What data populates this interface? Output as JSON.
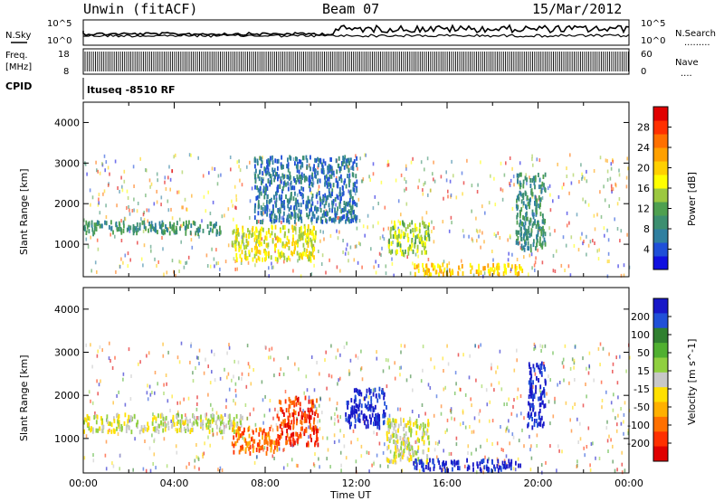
{
  "header": {
    "radar_title": "Unwin (fitACF)",
    "beam": "Beam 07",
    "date": "15/Mar/2012"
  },
  "status_panels": {
    "left_top_label": "N.Sky",
    "left_top_ticks": [
      "10^5",
      "10^0"
    ],
    "right_top_label": "N.Search",
    "right_top_ticks": [
      "10^5",
      "10^0"
    ],
    "left_mid_label_1": "Freq.",
    "left_mid_label_2": "[MHz]",
    "left_mid_ticks": [
      "18",
      "8"
    ],
    "right_mid_label": "Nave",
    "right_mid_ticks": [
      "60",
      "0"
    ],
    "cpid_label": "CPID",
    "cpid_text": "ltuseq -8510 RF"
  },
  "chart_data": [
    {
      "type": "heatmap",
      "name": "power",
      "ylabel": "Slant Range [km]",
      "yticks": [
        "1000",
        "2000",
        "3000",
        "4000"
      ],
      "ylim": [
        200,
        4500
      ],
      "xlim": [
        0,
        24
      ],
      "xticks": [
        "00:00",
        "04:00",
        "08:00",
        "12:00",
        "16:00",
        "20:00",
        "00:00"
      ],
      "colorbar": {
        "label": "Power [dB]",
        "ticks": [
          "4",
          "8",
          "12",
          "16",
          "20",
          "24",
          "28"
        ],
        "colors": [
          "#1010e0",
          "#1f4fd8",
          "#2f7fa0",
          "#3c8f70",
          "#4fa050",
          "#9cc840",
          "#ffff00",
          "#ffd000",
          "#ffa000",
          "#ff7000",
          "#ff3000",
          "#e00000"
        ]
      },
      "regions": [
        {
          "x": [
            0,
            6
          ],
          "y": [
            1300,
            1600
          ],
          "level": 3
        },
        {
          "x": [
            6.5,
            10.2
          ],
          "y": [
            650,
            1500
          ],
          "level": 6
        },
        {
          "x": [
            7.5,
            12
          ],
          "y": [
            1600,
            3200
          ],
          "level": 2
        },
        {
          "x": [
            13.4,
            15.2
          ],
          "y": [
            800,
            1600
          ],
          "level": 5
        },
        {
          "x": [
            14.5,
            19.3
          ],
          "y": [
            300,
            550
          ],
          "level": 7
        },
        {
          "x": [
            19,
            20.3
          ],
          "y": [
            900,
            2800
          ],
          "level": 3
        }
      ]
    },
    {
      "type": "heatmap",
      "name": "velocity",
      "ylabel": "Slant Range [km]",
      "yticks": [
        "1000",
        "2000",
        "3000",
        "4000"
      ],
      "ylim": [
        200,
        4500
      ],
      "xlim": [
        0,
        24
      ],
      "xticks": [
        "00:00",
        "04:00",
        "08:00",
        "12:00",
        "16:00",
        "20:00",
        "00:00"
      ],
      "xlabel": "Time UT",
      "colorbar": {
        "label": "Velocity [m s^-1]",
        "ticks": [
          "200",
          "100",
          "50",
          "15",
          "-15",
          "-50",
          "-100",
          "-200"
        ],
        "colors": [
          "#1818c8",
          "#2050d8",
          "#308030",
          "#50b030",
          "#90d040",
          "#c8c8c8",
          "#ffe000",
          "#ffb000",
          "#ff7000",
          "#ff3000",
          "#e00000"
        ]
      },
      "regions": [
        {
          "x": [
            0,
            7
          ],
          "y": [
            1200,
            1600
          ],
          "level": 5
        },
        {
          "x": [
            6.5,
            8.5
          ],
          "y": [
            700,
            1300
          ],
          "level": 8
        },
        {
          "x": [
            8.5,
            10.3
          ],
          "y": [
            900,
            2000
          ],
          "level": 9
        },
        {
          "x": [
            11.5,
            13.3
          ],
          "y": [
            1300,
            2200
          ],
          "level": 0
        },
        {
          "x": [
            13.3,
            15.2
          ],
          "y": [
            500,
            1500
          ],
          "level": 5
        },
        {
          "x": [
            14.5,
            19.3
          ],
          "y": [
            300,
            550
          ],
          "level": 0
        },
        {
          "x": [
            19.5,
            20.3
          ],
          "y": [
            1300,
            2800
          ],
          "level": 0
        }
      ]
    }
  ]
}
